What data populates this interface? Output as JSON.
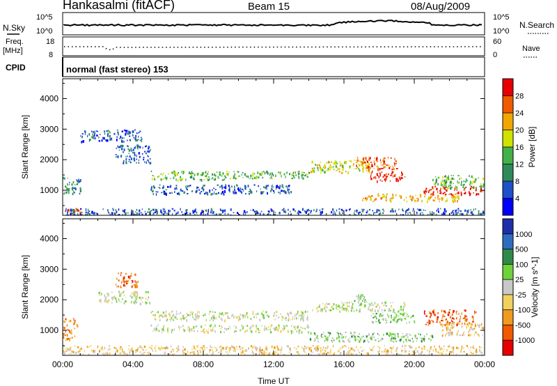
{
  "header": {
    "station": "Hankasalmi (fitACF)",
    "beam": "Beam 15",
    "date": "08/Aug/2009"
  },
  "strips": {
    "nsky_label": "N.Sky",
    "nsearch_label": "N.Search",
    "nsky_ticks": [
      "10^5",
      "10^0"
    ],
    "nsearch_ticks": [
      "10^5",
      "10^0"
    ],
    "freq_label": "Freq.",
    "freq_unit": "[MHz]",
    "freq_ticks": [
      "18",
      "8"
    ],
    "nave_label": "Nave",
    "nave_ticks": [
      "60",
      "0"
    ],
    "cpid_label": "CPID",
    "cpid_text": "normal (fast stereo) 153"
  },
  "chart_data": [
    {
      "type": "heatmap",
      "name": "power-panel",
      "ylabel": "Slant Range [km]",
      "xlabel": "",
      "x_ticks": [
        "00:00",
        "04:00",
        "08:00",
        "12:00",
        "16:00",
        "20:00",
        "00:00"
      ],
      "x_range_hours": [
        0,
        24
      ],
      "y_ticks": [
        1000,
        2000,
        3000,
        4000
      ],
      "ylim": [
        180,
        4650
      ],
      "colorbar": {
        "label": "Power [dB]",
        "ticks": [
          "4",
          "8",
          "12",
          "16",
          "20",
          "24",
          "28"
        ],
        "colors": [
          "#0000ff",
          "#1e50c8",
          "#2f8a5a",
          "#44b04a",
          "#cfe200",
          "#f2a600",
          "#f05a00",
          "#e60000"
        ]
      },
      "echo_bands": [
        {
          "t0": 0.0,
          "t1": 1.2,
          "r0": 250,
          "r1": 420,
          "level": 6
        },
        {
          "t0": 0.0,
          "t1": 1.0,
          "r0": 900,
          "r1": 1500,
          "level": 2
        },
        {
          "t0": 1.0,
          "t1": 4.5,
          "r0": 2600,
          "r1": 3000,
          "level": 1
        },
        {
          "t0": 3.0,
          "t1": 5.0,
          "r0": 1900,
          "r1": 2500,
          "level": 1
        },
        {
          "t0": 5.0,
          "t1": 10.0,
          "r0": 1350,
          "r1": 1650,
          "level": 3
        },
        {
          "t0": 5.0,
          "t1": 13.0,
          "r0": 900,
          "r1": 1200,
          "level": 1
        },
        {
          "t0": 10.0,
          "t1": 14.0,
          "r0": 1400,
          "r1": 1650,
          "level": 3
        },
        {
          "t0": 14.0,
          "t1": 17.5,
          "r0": 1600,
          "r1": 2000,
          "level": 4
        },
        {
          "t0": 16.5,
          "t1": 19.0,
          "r0": 1700,
          "r1": 2100,
          "level": 6
        },
        {
          "t0": 17.5,
          "t1": 19.5,
          "r0": 1300,
          "r1": 1650,
          "level": 7
        },
        {
          "t0": 17.0,
          "t1": 22.5,
          "r0": 650,
          "r1": 900,
          "level": 5
        },
        {
          "t0": 20.5,
          "t1": 24.0,
          "r0": 880,
          "r1": 1150,
          "level": 7
        },
        {
          "t0": 21.0,
          "t1": 24.0,
          "r0": 1100,
          "r1": 1500,
          "level": 3
        },
        {
          "t0": 0.0,
          "t1": 24.0,
          "r0": 200,
          "r1": 420,
          "level": 1
        }
      ]
    },
    {
      "type": "heatmap",
      "name": "velocity-panel",
      "ylabel": "Slant Range [km]",
      "xlabel": "Time UT",
      "x_ticks": [
        "00:00",
        "04:00",
        "08:00",
        "12:00",
        "16:00",
        "20:00",
        "00:00"
      ],
      "x_range_hours": [
        0,
        24
      ],
      "y_ticks": [
        1000,
        2000,
        3000,
        4000
      ],
      "ylim": [
        180,
        4650
      ],
      "colorbar": {
        "label": "Velocity [m s^-1]",
        "ticks": [
          "1000",
          "500",
          "100",
          "25",
          "-25",
          "-100",
          "-500",
          "-1000"
        ],
        "colors": [
          "#1f2fa8",
          "#2e6cc0",
          "#2f8a4a",
          "#6ed23a",
          "#c8c8c8",
          "#f2d060",
          "#f09a20",
          "#f05a00",
          "#e60000"
        ]
      },
      "echo_bands": [
        {
          "t0": 0.0,
          "t1": 0.8,
          "r0": 700,
          "r1": 1400,
          "level": 6
        },
        {
          "t0": 0.0,
          "t1": 24.0,
          "r0": 220,
          "r1": 520,
          "level": 5
        },
        {
          "t0": 3.0,
          "t1": 4.3,
          "r0": 2400,
          "r1": 2900,
          "level": 7
        },
        {
          "t0": 2.0,
          "t1": 5.0,
          "r0": 1900,
          "r1": 2300,
          "level": 4
        },
        {
          "t0": 5.0,
          "t1": 14.0,
          "r0": 1350,
          "r1": 1650,
          "level": 4
        },
        {
          "t0": 5.0,
          "t1": 14.0,
          "r0": 950,
          "r1": 1200,
          "level": 4
        },
        {
          "t0": 14.0,
          "t1": 19.5,
          "r0": 1650,
          "r1": 1950,
          "level": 4
        },
        {
          "t0": 16.5,
          "t1": 17.2,
          "r0": 1950,
          "r1": 2200,
          "level": 3
        },
        {
          "t0": 17.5,
          "t1": 20.0,
          "r0": 1250,
          "r1": 1600,
          "level": 3
        },
        {
          "t0": 14.0,
          "t1": 21.0,
          "r0": 650,
          "r1": 950,
          "level": 3
        },
        {
          "t0": 20.5,
          "t1": 23.5,
          "r0": 1200,
          "r1": 1700,
          "level": 7
        },
        {
          "t0": 21.5,
          "t1": 24.0,
          "r0": 850,
          "r1": 1250,
          "level": 5
        }
      ]
    }
  ]
}
